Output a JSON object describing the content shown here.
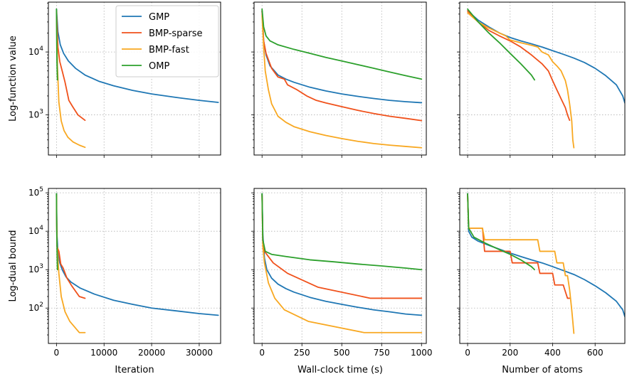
{
  "colors": {
    "GMP": "#1f77b4",
    "BMP-sparse": "#f0511b",
    "BMP-fast": "#f8a821",
    "OMP": "#2ca02c"
  },
  "legend": {
    "placement": "top-right of first panel",
    "entries": [
      "GMP",
      "BMP-sparse",
      "BMP-fast",
      "OMP"
    ]
  },
  "chart_data": [
    {
      "type": "line",
      "position": "top-left",
      "ylabel": "Log-function value",
      "xlabel": "",
      "yscale": "log",
      "xlim": [
        -1700,
        34500
      ],
      "ylim": [
        230,
        62000
      ],
      "xticks": [
        0,
        10000,
        20000,
        30000
      ],
      "xtick_labels_shown": false,
      "yticks": [
        1000,
        10000
      ],
      "ytick_labels": [
        "10^3",
        "10^4"
      ],
      "series": [
        {
          "name": "GMP",
          "x": [
            0,
            300,
            800,
            1500,
            2500,
            4000,
            6000,
            9000,
            12000,
            16000,
            20000,
            25000,
            30000,
            34000
          ],
          "y": [
            48000,
            21000,
            13000,
            9500,
            7200,
            5500,
            4300,
            3400,
            2900,
            2450,
            2150,
            1900,
            1700,
            1580
          ]
        },
        {
          "name": "BMP-sparse",
          "x": [
            0,
            300,
            700,
            1200,
            1800,
            2600,
            3400,
            4500,
            6000
          ],
          "y": [
            45000,
            12000,
            7000,
            5000,
            3300,
            1700,
            1350,
            1000,
            820
          ]
        },
        {
          "name": "BMP-fast",
          "x": [
            0,
            200,
            500,
            1000,
            1600,
            2400,
            3500,
            4800,
            6000
          ],
          "y": [
            42000,
            6000,
            1600,
            800,
            560,
            440,
            370,
            330,
            305
          ]
        },
        {
          "name": "OMP",
          "x": [
            0,
            50,
            100,
            200
          ],
          "y": [
            48000,
            15000,
            7000,
            3600
          ]
        }
      ]
    },
    {
      "type": "line",
      "position": "top-middle",
      "ylabel": "",
      "xlabel": "",
      "yscale": "log",
      "xlim": [
        -50,
        1030
      ],
      "ylim": [
        230,
        62000
      ],
      "xticks": [
        0,
        250,
        500,
        750,
        1000
      ],
      "xtick_labels_shown": false,
      "yticks": [
        1000,
        10000
      ],
      "ytick_labels_shown": false,
      "series": [
        {
          "name": "GMP",
          "x": [
            0,
            10,
            25,
            50,
            100,
            150,
            200,
            300,
            400,
            500,
            600,
            700,
            800,
            900,
            1000
          ],
          "y": [
            45000,
            15000,
            9000,
            6000,
            4300,
            3700,
            3300,
            2750,
            2400,
            2150,
            1970,
            1820,
            1700,
            1620,
            1560
          ]
        },
        {
          "name": "BMP-sparse",
          "x": [
            0,
            10,
            25,
            60,
            100,
            140,
            160,
            220,
            280,
            340,
            400,
            500,
            600,
            700,
            800,
            900,
            1000
          ],
          "y": [
            45000,
            15000,
            9500,
            5500,
            4000,
            3700,
            3000,
            2500,
            2000,
            1700,
            1550,
            1350,
            1180,
            1050,
            950,
            880,
            810
          ]
        },
        {
          "name": "BMP-fast",
          "x": [
            0,
            10,
            20,
            40,
            60,
            100,
            150,
            200,
            300,
            400,
            500,
            600,
            700,
            800,
            900,
            1000
          ],
          "y": [
            38000,
            12000,
            5000,
            2500,
            1500,
            950,
            760,
            650,
            540,
            470,
            420,
            380,
            350,
            330,
            315,
            300
          ]
        },
        {
          "name": "OMP",
          "x": [
            0,
            10,
            25,
            50,
            100,
            200,
            300,
            400,
            500,
            600,
            700,
            800,
            900,
            1000
          ],
          "y": [
            48000,
            25000,
            18000,
            15000,
            13000,
            11000,
            9500,
            8200,
            7200,
            6300,
            5500,
            4800,
            4200,
            3700
          ]
        }
      ]
    },
    {
      "type": "line",
      "position": "top-right",
      "ylabel": "",
      "xlabel": "",
      "yscale": "log",
      "xlim": [
        -37,
        740
      ],
      "ylim": [
        230,
        62000
      ],
      "xticks": [
        0,
        200,
        400,
        600
      ],
      "xtick_labels_shown": false,
      "yticks": [
        1000,
        10000
      ],
      "ytick_labels_shown": false,
      "series": [
        {
          "name": "GMP",
          "x": [
            0,
            50,
            100,
            150,
            200,
            250,
            300,
            350,
            400,
            450,
            500,
            550,
            600,
            650,
            700,
            730,
            740
          ],
          "y": [
            45000,
            32000,
            25000,
            20000,
            17000,
            15000,
            13500,
            12000,
            10500,
            9200,
            8000,
            6800,
            5500,
            4200,
            3000,
            2000,
            1550
          ]
        },
        {
          "name": "BMP-sparse",
          "x": [
            0,
            50,
            100,
            150,
            200,
            250,
            300,
            350,
            380,
            400,
            420,
            440,
            460,
            470,
            480
          ],
          "y": [
            45000,
            30000,
            22000,
            18000,
            15000,
            12000,
            9000,
            6500,
            5000,
            3500,
            2500,
            1800,
            1300,
            1000,
            820
          ]
        },
        {
          "name": "BMP-fast",
          "x": [
            0,
            50,
            100,
            150,
            180,
            200,
            250,
            300,
            330,
            350,
            380,
            400,
            420,
            440,
            460,
            470,
            480,
            490,
            495,
            500
          ],
          "y": [
            42000,
            30000,
            24000,
            20000,
            18000,
            15500,
            14000,
            12800,
            12000,
            10000,
            9000,
            7000,
            6000,
            5000,
            3500,
            2500,
            1500,
            800,
            400,
            300
          ]
        },
        {
          "name": "OMP",
          "x": [
            0,
            50,
            100,
            150,
            200,
            250,
            300,
            315
          ],
          "y": [
            48000,
            30000,
            20000,
            14000,
            9500,
            6500,
            4300,
            3600
          ]
        }
      ]
    },
    {
      "type": "line",
      "position": "bottom-left",
      "ylabel": "Log-dual bound",
      "xlabel": "Iteration",
      "yscale": "log",
      "xlim": [
        -1700,
        34500
      ],
      "ylim": [
        12,
        130000
      ],
      "xticks": [
        0,
        10000,
        20000,
        30000
      ],
      "xtick_labels": [
        "0",
        "10000",
        "20000",
        "30000"
      ],
      "yticks": [
        100,
        1000,
        10000,
        100000
      ],
      "ytick_labels": [
        "10^2",
        "10^3",
        "10^4",
        "10^5"
      ],
      "series": [
        {
          "name": "GMP",
          "x": [
            0,
            100,
            300,
            700,
            1200,
            2000,
            3000,
            5000,
            8000,
            12000,
            16000,
            20000,
            25000,
            30000,
            34000
          ],
          "y": [
            95000,
            8000,
            3000,
            1500,
            1000,
            650,
            480,
            330,
            230,
            160,
            125,
            100,
            85,
            72,
            65
          ]
        },
        {
          "name": "BMP-sparse",
          "x": [
            0,
            100,
            500,
            900,
            1400,
            2200,
            3200,
            4800,
            6000
          ],
          "y": [
            90000,
            4000,
            3000,
            1400,
            1100,
            600,
            380,
            200,
            180
          ]
        },
        {
          "name": "BMP-fast",
          "x": [
            0,
            100,
            500,
            1000,
            1800,
            2800,
            4800,
            6000
          ],
          "y": [
            85000,
            5000,
            800,
            200,
            80,
            45,
            23,
            23
          ]
        },
        {
          "name": "OMP",
          "x": [
            0,
            50,
            120,
            200
          ],
          "y": [
            95000,
            12000,
            3000,
            1000
          ]
        }
      ]
    },
    {
      "type": "line",
      "position": "bottom-middle",
      "ylabel": "",
      "xlabel": "Wall-clock time (s)",
      "yscale": "log",
      "xlim": [
        -50,
        1030
      ],
      "ylim": [
        12,
        130000
      ],
      "xticks": [
        0,
        250,
        500,
        750,
        1000
      ],
      "xtick_labels": [
        "0",
        "250",
        "500",
        "750",
        "1000"
      ],
      "yticks": [
        100,
        1000,
        10000,
        100000
      ],
      "ytick_labels_shown": false,
      "series": [
        {
          "name": "GMP",
          "x": [
            0,
            5,
            15,
            30,
            60,
            100,
            150,
            200,
            300,
            400,
            500,
            600,
            700,
            800,
            900,
            1000
          ],
          "y": [
            95000,
            8000,
            2000,
            1000,
            600,
            420,
            320,
            260,
            190,
            150,
            125,
            105,
            90,
            80,
            70,
            65
          ]
        },
        {
          "name": "BMP-sparse",
          "x": [
            0,
            5,
            15,
            70,
            160,
            350,
            680,
            1000
          ],
          "y": [
            90000,
            5000,
            3000,
            1500,
            800,
            350,
            180,
            180
          ]
        },
        {
          "name": "BMP-fast",
          "x": [
            0,
            5,
            15,
            40,
            80,
            140,
            290,
            640,
            1000
          ],
          "y": [
            85000,
            4000,
            1500,
            450,
            180,
            90,
            45,
            23,
            23
          ]
        },
        {
          "name": "OMP",
          "x": [
            0,
            5,
            20,
            60,
            150,
            300,
            450,
            600,
            750,
            900,
            1000
          ],
          "y": [
            95000,
            6000,
            3000,
            2500,
            2200,
            1800,
            1600,
            1400,
            1250,
            1100,
            1000
          ]
        }
      ]
    },
    {
      "type": "line",
      "position": "bottom-right",
      "ylabel": "",
      "xlabel": "Number of atoms",
      "yscale": "log",
      "xlim": [
        -37,
        740
      ],
      "ylim": [
        12,
        130000
      ],
      "xticks": [
        0,
        200,
        400,
        600
      ],
      "xtick_labels": [
        "0",
        "200",
        "400",
        "600"
      ],
      "yticks": [
        100,
        1000,
        10000,
        100000
      ],
      "ytick_labels_shown": false,
      "series": [
        {
          "name": "GMP",
          "x": [
            0,
            5,
            20,
            50,
            100,
            150,
            200,
            250,
            300,
            350,
            400,
            450,
            500,
            550,
            600,
            650,
            700,
            730,
            740
          ],
          "y": [
            95000,
            10000,
            7000,
            5500,
            4300,
            3400,
            2700,
            2200,
            1800,
            1500,
            1200,
            950,
            750,
            550,
            380,
            250,
            150,
            90,
            60
          ]
        },
        {
          "name": "BMP-sparse",
          "x": [
            0,
            5,
            70,
            80,
            200,
            210,
            330,
            340,
            400,
            410,
            450,
            470,
            480
          ],
          "y": [
            90000,
            12000,
            12000,
            3000,
            3000,
            1500,
            1500,
            800,
            800,
            400,
            400,
            180,
            180
          ]
        },
        {
          "name": "BMP-fast",
          "x": [
            0,
            5,
            70,
            80,
            330,
            340,
            410,
            420,
            450,
            460,
            470,
            480,
            490,
            495,
            500
          ],
          "y": [
            85000,
            12000,
            12000,
            6000,
            6000,
            3000,
            3000,
            1500,
            1500,
            700,
            700,
            300,
            90,
            45,
            22
          ]
        },
        {
          "name": "OMP",
          "x": [
            0,
            5,
            30,
            80,
            150,
            200,
            250,
            300,
            315
          ],
          "y": [
            95000,
            12000,
            7000,
            5000,
            3300,
            2500,
            1800,
            1200,
            1000
          ]
        }
      ]
    }
  ]
}
